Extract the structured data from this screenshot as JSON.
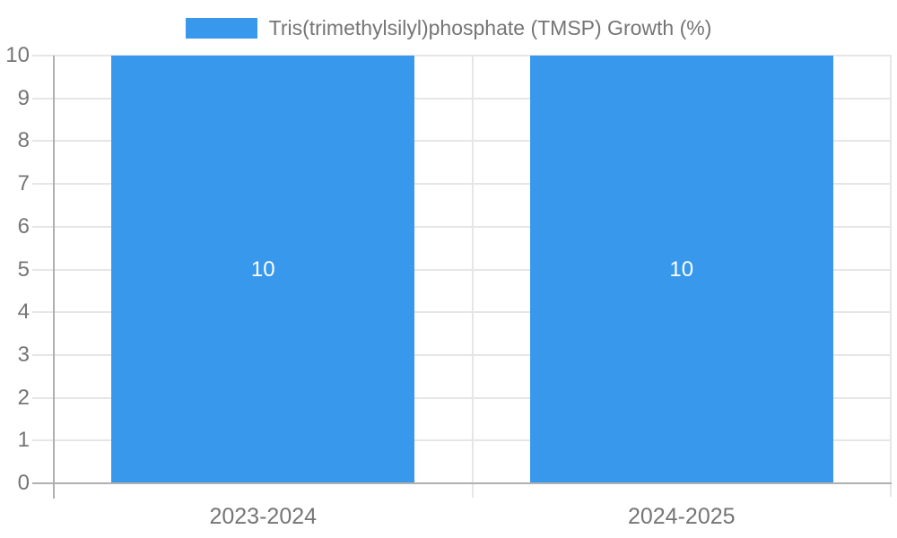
{
  "chart_data": {
    "type": "bar",
    "legend": {
      "position": "top"
    },
    "categories": [
      "2023-2024",
      "2024-2025"
    ],
    "series": [
      {
        "name": "Tris(trimethylsilyl)phosphate (TMSP) Growth (%)",
        "values": [
          10,
          10
        ],
        "color": "#3898ec"
      }
    ],
    "value_labels": [
      "10",
      "10"
    ],
    "ylim": [
      0,
      10
    ],
    "yticks": [
      0,
      1,
      2,
      3,
      4,
      5,
      6,
      7,
      8,
      9,
      10
    ],
    "grid": true,
    "colors": {
      "grid": "#e6e6e6",
      "axis": "#b0b0b0",
      "tick_text": "#757575",
      "value_label": "#ffffff",
      "background": "#ffffff"
    }
  }
}
